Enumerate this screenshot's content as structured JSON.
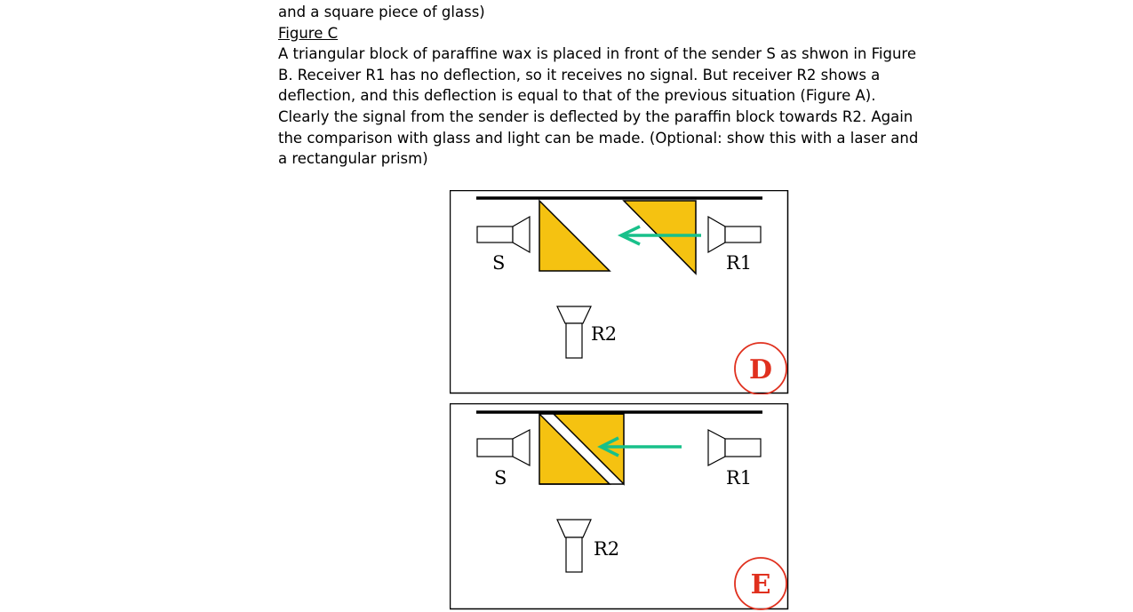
{
  "text": {
    "intro_tail": "and a square piece of glass)",
    "figure_heading": "Figure C",
    "paragraph_lines": [
      "A triangular block of paraffine wax is placed in front of the sender S as shwon in Figure",
      "B. Receiver R1 has no deflection, so it receives no signal. But receiver R2 shows a",
      "deflection, and this deflection is equal to that of the previous situation (Figure A).",
      "Clearly the signal from the sender is deflected by the paraffin block towards R2. Again",
      "the comparison with glass and light can be made. (Optional: show this with a laser and",
      "a rectangular prism)"
    ]
  },
  "diagrams": [
    {
      "panel": "D",
      "sender_label": "S",
      "receiver1_label": "R1",
      "receiver2_label": "R2"
    },
    {
      "panel": "E",
      "sender_label": "S",
      "receiver1_label": "R1",
      "receiver2_label": "R2"
    }
  ],
  "colors": {
    "paraffin_fill": "#f5c211",
    "arrow": "#18c08a",
    "panel_letter": "#e0301e",
    "line": "#000000"
  }
}
